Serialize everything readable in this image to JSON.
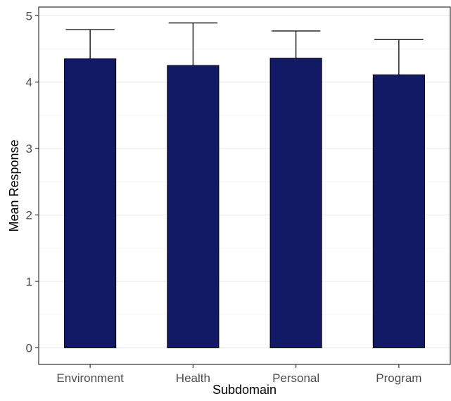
{
  "chart_data": {
    "type": "bar",
    "title": "",
    "xlabel": "Subdomain",
    "ylabel": "Mean Response",
    "categories": [
      "Environment",
      "Health",
      "Personal",
      "Program"
    ],
    "values": [
      4.35,
      4.25,
      4.36,
      4.11
    ],
    "error_upper": [
      4.79,
      4.89,
      4.77,
      4.64
    ],
    "ylim": [
      -0.25,
      5.13
    ],
    "yticks": [
      0,
      1,
      2,
      3,
      4,
      5
    ],
    "grid": true,
    "legend": "none",
    "colors": {
      "bar_fill": "#131a65",
      "bar_stroke": "#000000",
      "grid_major": "#ebebeb",
      "grid_minor": "#f5f5f5",
      "panel_border": "#333333",
      "error_bar": "#000000"
    }
  }
}
